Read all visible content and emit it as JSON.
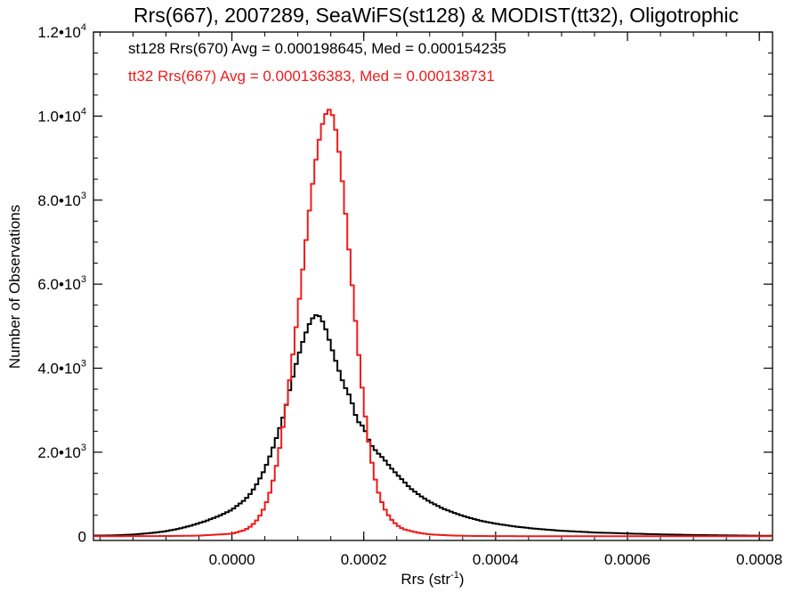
{
  "chart_data": {
    "type": "line",
    "title": "Rrs(667), 2007289, SeaWiFS(st128) & MODIST(tt32), Oligotrophic",
    "xlabel": "Rrs (str",
    "xlabel_sup": "-1",
    "xlabel_end": ")",
    "ylabel": "Number of Observations",
    "xlim": [
      -0.00021,
      0.00082
    ],
    "ylim": [
      -100,
      12000
    ],
    "x_ticks": [
      {
        "value": 0.0,
        "label": "0.0000"
      },
      {
        "value": 0.0002,
        "label": "0.0002"
      },
      {
        "value": 0.0004,
        "label": "0.0004"
      },
      {
        "value": 0.0006,
        "label": "0.0006"
      },
      {
        "value": 0.0008,
        "label": "0.0008"
      }
    ],
    "y_ticks": [
      {
        "value": 0,
        "mant": "0",
        "exp": ""
      },
      {
        "value": 2000,
        "mant": "2.0•10",
        "exp": "3"
      },
      {
        "value": 4000,
        "mant": "4.0•10",
        "exp": "3"
      },
      {
        "value": 6000,
        "mant": "6.0•10",
        "exp": "3"
      },
      {
        "value": 8000,
        "mant": "8.0•10",
        "exp": "3"
      },
      {
        "value": 10000,
        "mant": "1.0•10",
        "exp": "4"
      },
      {
        "value": 12000,
        "mant": "1.2•10",
        "exp": "4"
      }
    ],
    "grid": false,
    "legend_position": "top-left",
    "series": [
      {
        "name": "st128 Rrs(670) Avg = 0.000198645, Med = 0.000154235",
        "color": "#000000",
        "style": "step",
        "points": [
          [
            -0.00021,
            15
          ],
          [
            -0.00018,
            20
          ],
          [
            -0.00015,
            40
          ],
          [
            -0.00012,
            80
          ],
          [
            -0.0001,
            120
          ],
          [
            -8e-05,
            180
          ],
          [
            -6e-05,
            260
          ],
          [
            -4e-05,
            360
          ],
          [
            -2e-05,
            480
          ],
          [
            0.0,
            630
          ],
          [
            1e-05,
            750
          ],
          [
            2e-05,
            870
          ],
          [
            3e-05,
            1050
          ],
          [
            4e-05,
            1300
          ],
          [
            5e-05,
            1600
          ],
          [
            6e-05,
            2000
          ],
          [
            7e-05,
            2450
          ],
          [
            8e-05,
            2950
          ],
          [
            9e-05,
            3650
          ],
          [
            0.0001,
            4250
          ],
          [
            0.00011,
            4750
          ],
          [
            0.00012,
            5150
          ],
          [
            0.00013,
            5300
          ],
          [
            0.00014,
            5050
          ],
          [
            0.00015,
            4550
          ],
          [
            0.00016,
            4050
          ],
          [
            0.00017,
            3600
          ],
          [
            0.00018,
            3300
          ],
          [
            0.00019,
            2750
          ],
          [
            0.0002,
            2600
          ],
          [
            0.00021,
            2200
          ],
          [
            0.00022,
            2000
          ],
          [
            0.00023,
            1850
          ],
          [
            0.00024,
            1650
          ],
          [
            0.00025,
            1480
          ],
          [
            0.00026,
            1320
          ],
          [
            0.00027,
            1150
          ],
          [
            0.00028,
            1030
          ],
          [
            0.00029,
            920
          ],
          [
            0.0003,
            820
          ],
          [
            0.00032,
            660
          ],
          [
            0.00034,
            540
          ],
          [
            0.00036,
            440
          ],
          [
            0.00038,
            360
          ],
          [
            0.0004,
            300
          ],
          [
            0.00043,
            230
          ],
          [
            0.00046,
            180
          ],
          [
            0.0005,
            130
          ],
          [
            0.00055,
            90
          ],
          [
            0.0006,
            65
          ],
          [
            0.00065,
            45
          ],
          [
            0.0007,
            30
          ],
          [
            0.00075,
            20
          ],
          [
            0.0008,
            12
          ],
          [
            0.00082,
            10
          ]
        ]
      },
      {
        "name": "tt32 Rrs(667) Avg = 0.000136383, Med = 0.000138731",
        "color": "#ee1c1c",
        "style": "step",
        "points": [
          [
            -0.00021,
            0
          ],
          [
            -0.0001,
            5
          ],
          [
            -5e-05,
            15
          ],
          [
            0.0,
            60
          ],
          [
            2e-05,
            150
          ],
          [
            3e-05,
            250
          ],
          [
            4e-05,
            420
          ],
          [
            5e-05,
            700
          ],
          [
            6e-05,
            1150
          ],
          [
            7e-05,
            1850
          ],
          [
            8e-05,
            2850
          ],
          [
            9e-05,
            4000
          ],
          [
            0.0001,
            5300
          ],
          [
            0.00011,
            6700
          ],
          [
            0.00012,
            8100
          ],
          [
            0.00013,
            9250
          ],
          [
            0.00014,
            10000
          ],
          [
            0.00015,
            10200
          ],
          [
            0.00016,
            9500
          ],
          [
            0.00017,
            8100
          ],
          [
            0.00018,
            6400
          ],
          [
            0.00019,
            4700
          ],
          [
            0.0002,
            3150
          ],
          [
            0.00021,
            1950
          ],
          [
            0.00022,
            1150
          ],
          [
            0.00023,
            700
          ],
          [
            0.00024,
            430
          ],
          [
            0.00025,
            270
          ],
          [
            0.00026,
            170
          ],
          [
            0.00028,
            90
          ],
          [
            0.0003,
            45
          ],
          [
            0.00033,
            20
          ],
          [
            0.00036,
            8
          ],
          [
            0.0004,
            3
          ],
          [
            0.0005,
            0
          ],
          [
            0.00082,
            0
          ]
        ]
      }
    ]
  }
}
